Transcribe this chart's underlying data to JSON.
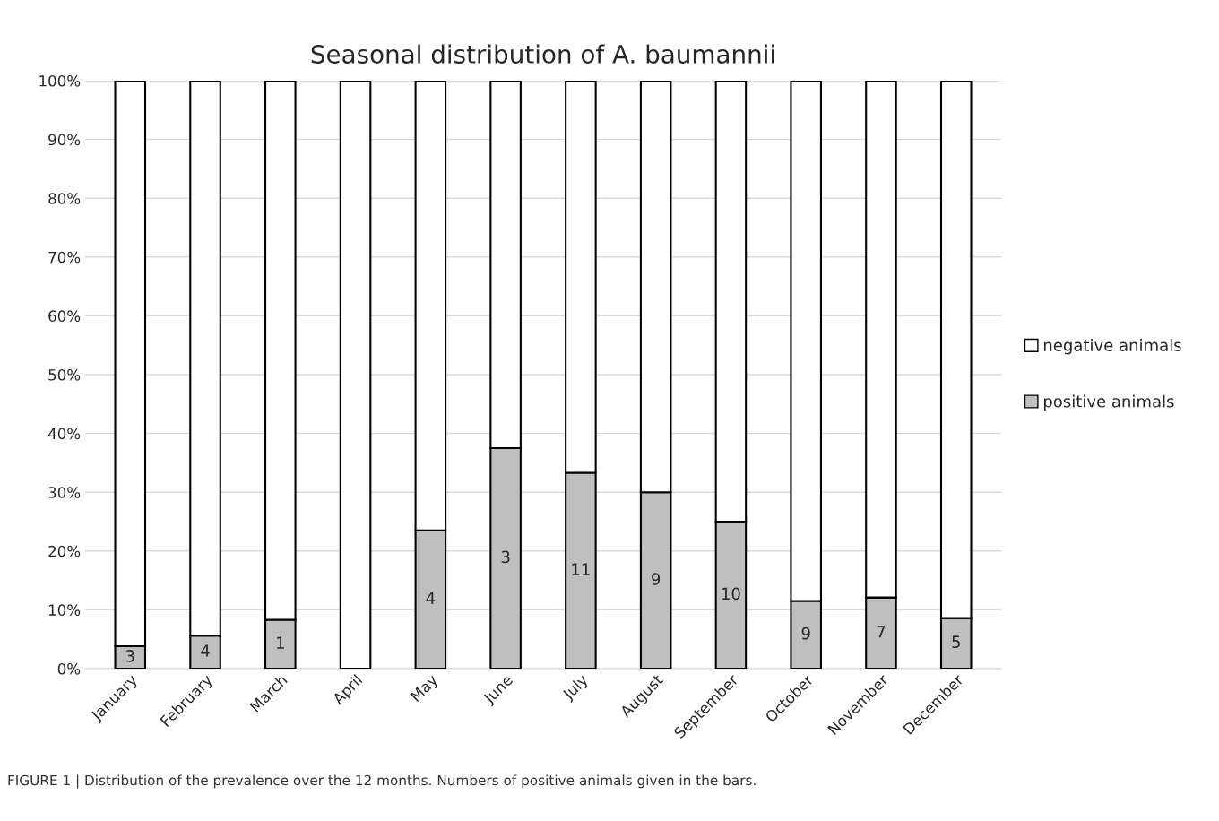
{
  "chart_data": {
    "type": "bar",
    "title": "Seasonal distribution of A. baumannii",
    "categories": [
      "January",
      "February",
      "March",
      "April",
      "May",
      "June",
      "July",
      "August",
      "September",
      "October",
      "November",
      "December"
    ],
    "stacked": true,
    "series": [
      {
        "name": "positive animals",
        "color": "#bfbfbf",
        "values": [
          3.8,
          5.6,
          8.3,
          0,
          23.5,
          37.5,
          33.3,
          30,
          25,
          11.5,
          12.1,
          8.6
        ]
      },
      {
        "name": "negative animals",
        "color": "#ffffff",
        "values": [
          96.2,
          94.4,
          91.7,
          100,
          76.5,
          62.5,
          66.7,
          70,
          75,
          88.5,
          87.9,
          91.4
        ]
      }
    ],
    "ylim": [
      0,
      100
    ],
    "yticks": [
      {
        "value": 0,
        "label": "0%"
      },
      {
        "value": 10,
        "label": "10%"
      },
      {
        "value": 20,
        "label": "20%"
      },
      {
        "value": 30,
        "label": "30%"
      },
      {
        "value": 40,
        "label": "40%"
      },
      {
        "value": 50,
        "label": "50%"
      },
      {
        "value": 60,
        "label": "60%"
      },
      {
        "value": 70,
        "label": "70%"
      },
      {
        "value": 80,
        "label": "80%"
      },
      {
        "value": 90,
        "label": "90%"
      },
      {
        "value": 100,
        "label": "100%"
      }
    ],
    "grid": "y",
    "legend": "right",
    "annotations": [
      "3",
      "4",
      "1",
      "4",
      "3",
      "11",
      "9",
      "10",
      "9",
      "7",
      "5",
      "FIGURE 1 | Distribution of the prevalence over the 12 months. Numbers of positive animals given in the bars."
    ]
  }
}
